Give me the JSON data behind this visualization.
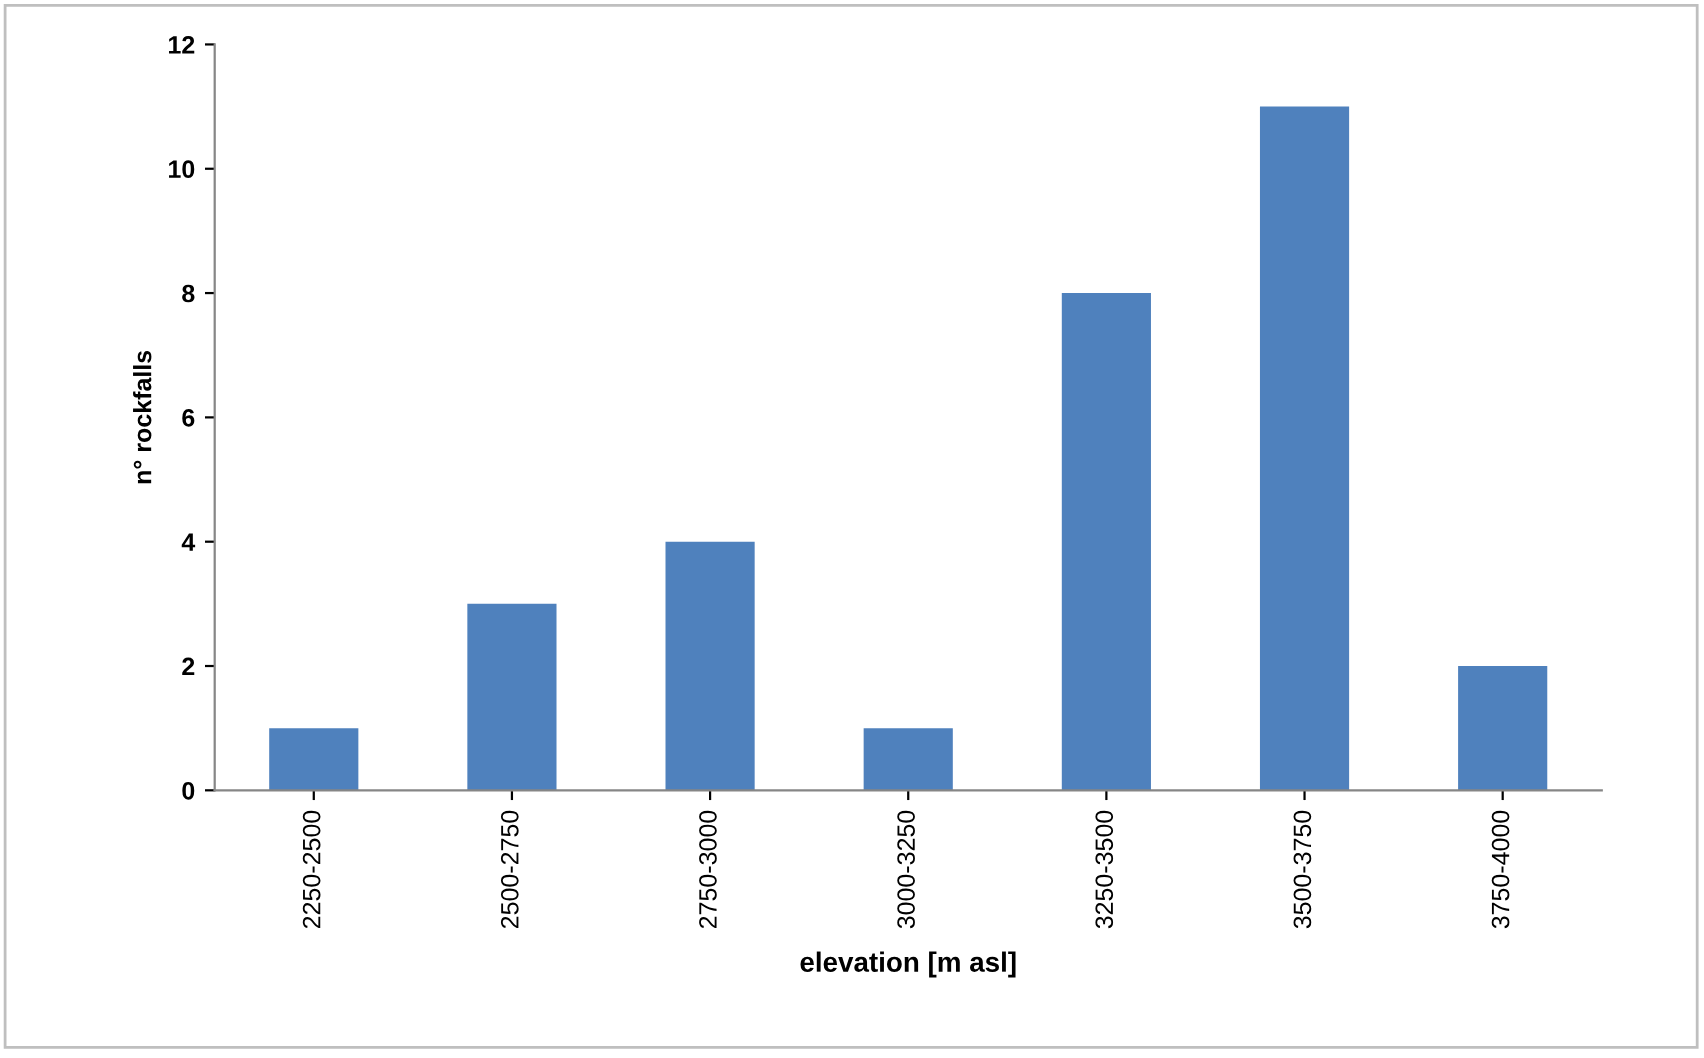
{
  "chart_data": {
    "type": "bar",
    "xlabel": "elevation [m asl]",
    "ylabel": "n° rockfalls",
    "categories": [
      "2250-2500",
      "2500-2750",
      "2750-3000",
      "3000-3250",
      "3250-3500",
      "3500-3750",
      "3750-4000"
    ],
    "values": [
      1,
      3,
      4,
      1,
      8,
      11,
      2
    ],
    "color": "#4f81bd",
    "ylim": [
      0,
      12
    ],
    "yticks": [
      0,
      2,
      4,
      6,
      8,
      10,
      12
    ],
    "grid": false,
    "legend": false
  }
}
